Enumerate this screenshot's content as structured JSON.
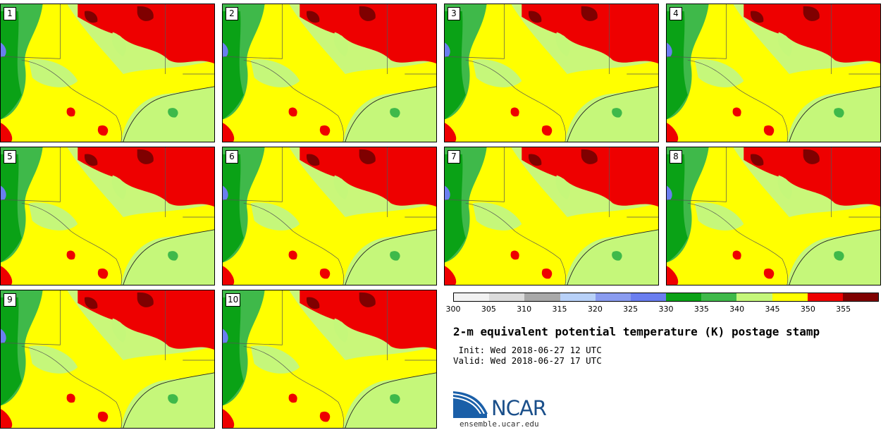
{
  "panels": [
    {
      "label": "1"
    },
    {
      "label": "2"
    },
    {
      "label": "3"
    },
    {
      "label": "4"
    },
    {
      "label": "5"
    },
    {
      "label": "6"
    },
    {
      "label": "7"
    },
    {
      "label": "8"
    },
    {
      "label": "9"
    },
    {
      "label": "10"
    }
  ],
  "colorbar": {
    "colors": [
      "#f2f2f2",
      "#dcdcdc",
      "#a9a9a9",
      "#b8d1f8",
      "#8a9cf0",
      "#6a7ef0",
      "#0aa216",
      "#3fb94a",
      "#c5f77a",
      "#ffff00",
      "#ee0000",
      "#7f0000"
    ],
    "ticks": [
      "300",
      "305",
      "310",
      "315",
      "320",
      "325",
      "330",
      "335",
      "340",
      "345",
      "350",
      "355"
    ]
  },
  "title": "2-m equivalent potential temperature (K) postage stamp",
  "init_line": " Init: Wed 2018-06-27 12 UTC",
  "valid_line": "Valid: Wed 2018-06-27 17 UTC",
  "logo": {
    "text": "NCAR",
    "url": "ensemble.ucar.edu"
  }
}
